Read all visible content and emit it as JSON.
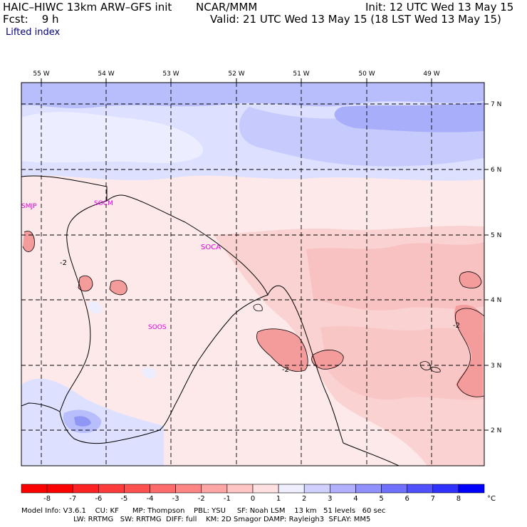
{
  "header": {
    "model": "HAIC–HIWC 13km ARW–GFS init",
    "org": "NCAR/MMM",
    "init": "Init: 12 UTC Wed 13 May 15",
    "fcst": "Fcst:    9 h",
    "valid": "Valid: 21 UTC Wed 13 May 15 (18 LST Wed 13 May 15)",
    "field": "Lifted index"
  },
  "map": {
    "lon_labels": [
      "55 W",
      "54 W",
      "53 W",
      "52 W",
      "51 W",
      "50 W",
      "49 W"
    ],
    "lat_labels": [
      "7 N",
      "6 N",
      "5 N",
      "4 N",
      "3 N",
      "2 N"
    ],
    "stations": [
      "SMJP",
      "SOCM",
      "SOCA",
      "SOOS"
    ],
    "contour_labels": [
      "-2",
      "-2",
      "-2"
    ]
  },
  "colorbar": {
    "ticks": [
      "-8",
      "-7",
      "-6",
      "-5",
      "-4",
      "-3",
      "-2",
      "-1",
      "0",
      "1",
      "2",
      "3",
      "4",
      "5",
      "6",
      "7",
      "8"
    ],
    "unit": "°C",
    "colors": [
      "#ff0000",
      "#ff2222",
      "#ff3b3b",
      "#ff5050",
      "#ff6a6a",
      "#ff8585",
      "#ffa5a5",
      "#ffc4c4",
      "#ffe0e0",
      "#eeeeff",
      "#d0d0ff",
      "#b0b0ff",
      "#9090ff",
      "#7070ff",
      "#5050ff",
      "#3030ff",
      "#0000ff"
    ]
  },
  "footer": {
    "line1": "Model Info: V3.6.1    CU: KF      MP: Thompson    PBL: YSU     SF: Noah LSM    13 km   51 levels   60 sec",
    "line2": "                       LW: RRTMG   SW: RRTMG  DIFF: full    KM: 2D Smagor DAMP: Rayleigh3  SFLAY: MM5"
  },
  "colors": {
    "blue_text": "#000080",
    "station": "#e000e0",
    "field_neg": "#ffd0d0",
    "field_pos": "#d8dcff"
  }
}
